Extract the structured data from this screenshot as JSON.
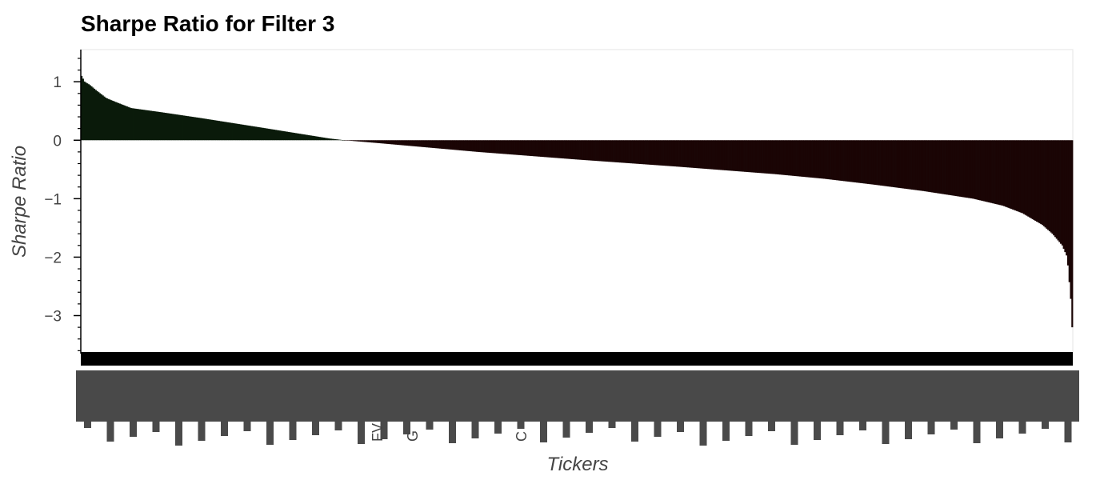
{
  "chart_data": {
    "type": "bar",
    "title": "Sharpe Ratio for Filter 3",
    "xlabel": "Tickers",
    "ylabel": "Sharpe Ratio",
    "ylim": [
      -3.65,
      1.55
    ],
    "y_ticks": [
      1,
      0,
      -1,
      -2,
      -3
    ],
    "y_tick_labels": [
      "1",
      "0",
      "−1",
      "−2",
      "−3"
    ],
    "grid": false,
    "colors": {
      "positive": "#0a1a0a",
      "negative": "#1a0505",
      "label_band": "#000000",
      "tick_label": "#444444",
      "frame": "#e5e5e5"
    },
    "visible_tick_labels": [
      "FV",
      "G",
      "C"
    ],
    "series_profile": {
      "count": 700,
      "sorted": "descending",
      "x_fraction": [
        0.0,
        0.003,
        0.008,
        0.015,
        0.025,
        0.035,
        0.05,
        0.08,
        0.12,
        0.18,
        0.25,
        0.265,
        0.3,
        0.4,
        0.5,
        0.6,
        0.7,
        0.75,
        0.8,
        0.85,
        0.9,
        0.93,
        0.95,
        0.97,
        0.98,
        0.99,
        0.995,
        0.999,
        1.0
      ],
      "values": [
        1.1,
        1.0,
        0.95,
        0.85,
        0.72,
        0.65,
        0.55,
        0.48,
        0.38,
        0.22,
        0.03,
        0.0,
        -0.05,
        -0.2,
        -0.33,
        -0.45,
        -0.58,
        -0.66,
        -0.76,
        -0.87,
        -1.0,
        -1.12,
        -1.25,
        -1.45,
        -1.6,
        -1.8,
        -2.0,
        -2.8,
        -3.2
      ]
    }
  }
}
